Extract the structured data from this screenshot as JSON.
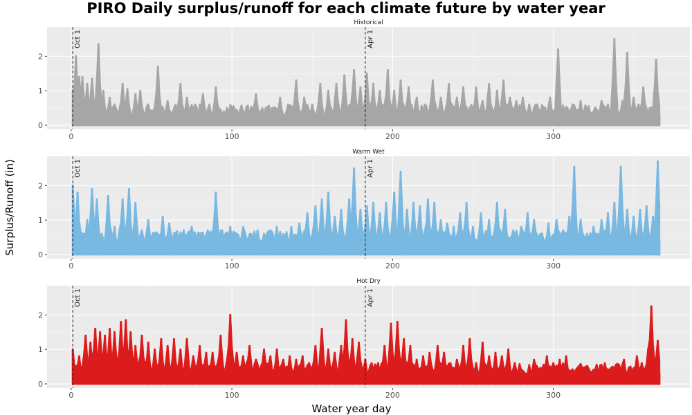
{
  "chart_data": {
    "type": "area",
    "title": "PIRO Daily surplus/runoff for each climate future by water year",
    "xlabel": "Water year day",
    "ylabel": "Surplus/Runoff (in)",
    "xlim": [
      -15,
      385
    ],
    "ylim": [
      -0.12,
      2.85
    ],
    "x_ticks": [
      0,
      100,
      200,
      300
    ],
    "y_ticks": [
      0,
      1,
      2
    ],
    "grid": true,
    "legend": "none",
    "markers": [
      {
        "day": 1,
        "label": "Oct 1"
      },
      {
        "day": 183,
        "label": "Apr 1"
      }
    ],
    "series": [
      {
        "name": "Historical",
        "color": "#a6a6a6",
        "peaks": [
          [
            1,
            1.0
          ],
          [
            3,
            2.0
          ],
          [
            5,
            1.4
          ],
          [
            7,
            1.4
          ],
          [
            10,
            1.2
          ],
          [
            13,
            1.35
          ],
          [
            17,
            2.35
          ],
          [
            20,
            1.0
          ],
          [
            24,
            0.8
          ],
          [
            27,
            0.6
          ],
          [
            32,
            1.2
          ],
          [
            35,
            1.05
          ],
          [
            40,
            0.9
          ],
          [
            43,
            1.0
          ],
          [
            48,
            0.6
          ],
          [
            54,
            1.7
          ],
          [
            60,
            0.7
          ],
          [
            64,
            0.5
          ],
          [
            68,
            1.2
          ],
          [
            72,
            0.8
          ],
          [
            77,
            0.6
          ],
          [
            82,
            0.9
          ],
          [
            86,
            0.6
          ],
          [
            90,
            1.1
          ],
          [
            95,
            0.4
          ],
          [
            100,
            0.5
          ],
          [
            105,
            0.3
          ],
          [
            110,
            0.2
          ],
          [
            115,
            0.9
          ],
          [
            120,
            0.2
          ],
          [
            125,
            0.5
          ],
          [
            130,
            0.8
          ],
          [
            135,
            0.6
          ],
          [
            140,
            1.3
          ],
          [
            145,
            0.8
          ],
          [
            150,
            0.6
          ],
          [
            155,
            1.2
          ],
          [
            160,
            1.0
          ],
          [
            165,
            1.2
          ],
          [
            170,
            1.45
          ],
          [
            176,
            1.6
          ],
          [
            180,
            1.1
          ],
          [
            184,
            1.5
          ],
          [
            188,
            1.2
          ],
          [
            192,
            1.0
          ],
          [
            197,
            1.6
          ],
          [
            201,
            1.0
          ],
          [
            205,
            1.3
          ],
          [
            210,
            1.1
          ],
          [
            215,
            0.8
          ],
          [
            220,
            0.6
          ],
          [
            225,
            1.3
          ],
          [
            230,
            0.8
          ],
          [
            235,
            1.2
          ],
          [
            240,
            0.8
          ],
          [
            244,
            1.1
          ],
          [
            248,
            0.5
          ],
          [
            252,
            1.1
          ],
          [
            256,
            0.7
          ],
          [
            260,
            1.2
          ],
          [
            265,
            1.0
          ],
          [
            269,
            1.3
          ],
          [
            273,
            0.8
          ],
          [
            277,
            0.7
          ],
          [
            281,
            0.8
          ],
          [
            285,
            0.6
          ],
          [
            290,
            0.6
          ],
          [
            294,
            0.5
          ],
          [
            298,
            0.8
          ],
          [
            303,
            2.2
          ],
          [
            307,
            0.4
          ],
          [
            312,
            0.6
          ],
          [
            317,
            0.7
          ],
          [
            322,
            0.5
          ],
          [
            326,
            0.3
          ],
          [
            330,
            0.7
          ],
          [
            334,
            0.6
          ],
          [
            338,
            2.5
          ],
          [
            343,
            0.7
          ],
          [
            346,
            2.1
          ],
          [
            350,
            0.8
          ],
          [
            353,
            0.6
          ],
          [
            356,
            1.1
          ],
          [
            360,
            0.5
          ],
          [
            364,
            1.9
          ],
          [
            366,
            0.3
          ]
        ]
      },
      {
        "name": "Warm Wet",
        "color": "#79b8e1",
        "peaks": [
          [
            1,
            2.0
          ],
          [
            4,
            1.8
          ],
          [
            7,
            0.6
          ],
          [
            10,
            1.0
          ],
          [
            13,
            1.9
          ],
          [
            16,
            1.6
          ],
          [
            19,
            0.6
          ],
          [
            23,
            1.7
          ],
          [
            27,
            0.8
          ],
          [
            32,
            1.6
          ],
          [
            36,
            1.9
          ],
          [
            40,
            1.5
          ],
          [
            44,
            0.7
          ],
          [
            48,
            1.0
          ],
          [
            52,
            0.6
          ],
          [
            57,
            1.1
          ],
          [
            61,
            0.9
          ],
          [
            65,
            0.6
          ],
          [
            70,
            0.7
          ],
          [
            75,
            0.8
          ],
          [
            80,
            0.6
          ],
          [
            85,
            0.7
          ],
          [
            90,
            1.8
          ],
          [
            94,
            0.7
          ],
          [
            99,
            0.8
          ],
          [
            103,
            0.6
          ],
          [
            107,
            0.8
          ],
          [
            112,
            0.6
          ],
          [
            116,
            0.7
          ],
          [
            120,
            0.6
          ],
          [
            124,
            0.7
          ],
          [
            128,
            0.8
          ],
          [
            132,
            0.6
          ],
          [
            137,
            0.8
          ],
          [
            142,
            0.9
          ],
          [
            147,
            1.2
          ],
          [
            152,
            1.4
          ],
          [
            156,
            1.6
          ],
          [
            160,
            1.8
          ],
          [
            164,
            1.1
          ],
          [
            168,
            1.3
          ],
          [
            173,
            1.6
          ],
          [
            176,
            2.5
          ],
          [
            180,
            1.3
          ],
          [
            184,
            1.4
          ],
          [
            188,
            1.5
          ],
          [
            192,
            1.2
          ],
          [
            196,
            1.5
          ],
          [
            201,
            1.8
          ],
          [
            205,
            2.4
          ],
          [
            209,
            1.3
          ],
          [
            213,
            1.5
          ],
          [
            217,
            1.4
          ],
          [
            222,
            1.6
          ],
          [
            226,
            1.5
          ],
          [
            230,
            1.0
          ],
          [
            234,
            0.9
          ],
          [
            238,
            0.8
          ],
          [
            242,
            1.2
          ],
          [
            246,
            1.5
          ],
          [
            250,
            0.8
          ],
          [
            255,
            1.2
          ],
          [
            260,
            1.0
          ],
          [
            265,
            1.5
          ],
          [
            270,
            1.3
          ],
          [
            275,
            0.7
          ],
          [
            280,
            0.8
          ],
          [
            284,
            1.2
          ],
          [
            288,
            1.0
          ],
          [
            292,
            0.6
          ],
          [
            297,
            0.9
          ],
          [
            302,
            1.0
          ],
          [
            306,
            0.7
          ],
          [
            310,
            1.1
          ],
          [
            313,
            2.55
          ],
          [
            317,
            1.0
          ],
          [
            321,
            0.6
          ],
          [
            325,
            0.8
          ],
          [
            330,
            1.0
          ],
          [
            334,
            1.2
          ],
          [
            338,
            1.5
          ],
          [
            342,
            2.55
          ],
          [
            346,
            1.3
          ],
          [
            350,
            1.1
          ],
          [
            354,
            1.3
          ],
          [
            358,
            1.4
          ],
          [
            362,
            1.1
          ],
          [
            365,
            2.7
          ],
          [
            366,
            0.4
          ]
        ]
      },
      {
        "name": "Hot Dry",
        "color": "#dc1c1c",
        "peaks": [
          [
            1,
            1.0
          ],
          [
            5,
            0.8
          ],
          [
            9,
            1.4
          ],
          [
            12,
            1.2
          ],
          [
            15,
            1.6
          ],
          [
            18,
            1.5
          ],
          [
            21,
            1.4
          ],
          [
            24,
            1.6
          ],
          [
            27,
            1.5
          ],
          [
            31,
            1.8
          ],
          [
            34,
            1.85
          ],
          [
            37,
            1.5
          ],
          [
            40,
            1.1
          ],
          [
            44,
            1.4
          ],
          [
            48,
            1.2
          ],
          [
            52,
            1.0
          ],
          [
            56,
            1.3
          ],
          [
            60,
            1.1
          ],
          [
            64,
            1.3
          ],
          [
            68,
            1.0
          ],
          [
            72,
            1.3
          ],
          [
            76,
            0.8
          ],
          [
            80,
            1.1
          ],
          [
            84,
            0.9
          ],
          [
            88,
            0.9
          ],
          [
            93,
            1.4
          ],
          [
            97,
            0.7
          ],
          [
            99,
            2.0
          ],
          [
            103,
            0.9
          ],
          [
            107,
            0.8
          ],
          [
            111,
            1.1
          ],
          [
            115,
            0.7
          ],
          [
            120,
            1.0
          ],
          [
            124,
            0.8
          ],
          [
            128,
            1.0
          ],
          [
            132,
            0.7
          ],
          [
            136,
            0.8
          ],
          [
            140,
            0.7
          ],
          [
            144,
            0.8
          ],
          [
            148,
            0.6
          ],
          [
            152,
            1.1
          ],
          [
            156,
            1.6
          ],
          [
            160,
            1.0
          ],
          [
            164,
            0.9
          ],
          [
            168,
            1.1
          ],
          [
            171,
            1.85
          ],
          [
            175,
            1.3
          ],
          [
            179,
            1.2
          ],
          [
            183,
            0.7
          ],
          [
            187,
            0.6
          ],
          [
            191,
            0.6
          ],
          [
            195,
            1.1
          ],
          [
            199,
            1.75
          ],
          [
            203,
            1.8
          ],
          [
            207,
            1.3
          ],
          [
            211,
            1.1
          ],
          [
            215,
            0.7
          ],
          [
            219,
            0.8
          ],
          [
            223,
            0.9
          ],
          [
            228,
            1.1
          ],
          [
            232,
            0.9
          ],
          [
            236,
            0.6
          ],
          [
            240,
            0.7
          ],
          [
            244,
            1.1
          ],
          [
            248,
            1.3
          ],
          [
            252,
            0.6
          ],
          [
            256,
            1.2
          ],
          [
            260,
            0.8
          ],
          [
            264,
            0.9
          ],
          [
            268,
            0.8
          ],
          [
            272,
            1.0
          ],
          [
            276,
            0.6
          ],
          [
            280,
            0.3
          ],
          [
            284,
            0.3
          ],
          [
            288,
            0.7
          ],
          [
            292,
            0.2
          ],
          [
            296,
            0.8
          ],
          [
            300,
            0.6
          ],
          [
            304,
            0.7
          ],
          [
            308,
            0.8
          ],
          [
            312,
            0.3
          ],
          [
            316,
            0.1
          ],
          [
            320,
            0.3
          ],
          [
            324,
            0.2
          ],
          [
            328,
            0.2
          ],
          [
            332,
            0.6
          ],
          [
            336,
            0.2
          ],
          [
            340,
            0.4
          ],
          [
            344,
            0.7
          ],
          [
            348,
            0.5
          ],
          [
            352,
            0.8
          ],
          [
            355,
            0.6
          ],
          [
            359,
            1.0
          ],
          [
            361,
            2.25
          ],
          [
            363,
            0.6
          ],
          [
            365,
            1.25
          ],
          [
            366,
            0.3
          ]
        ]
      }
    ]
  }
}
